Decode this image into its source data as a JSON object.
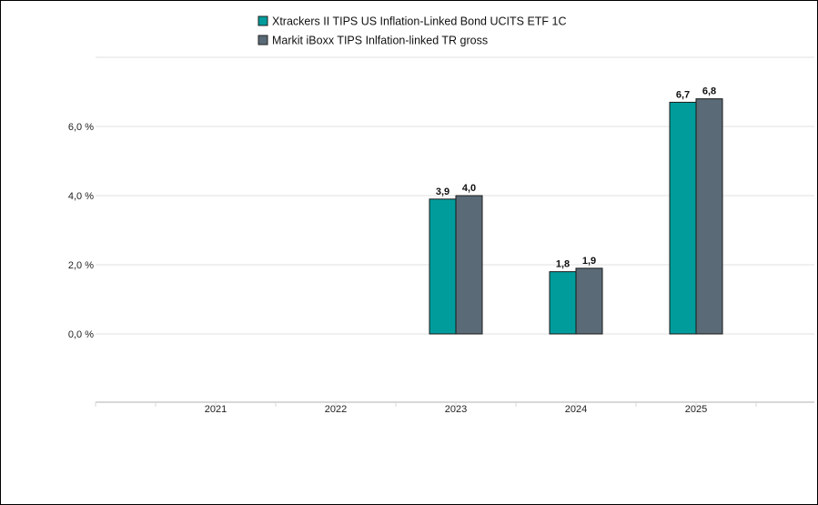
{
  "chart_data": {
    "type": "bar",
    "title": "",
    "xlabel": "",
    "ylabel": "",
    "categories": [
      "2021",
      "2022",
      "2023",
      "2024",
      "2025"
    ],
    "series": [
      {
        "name": "Xtrackers II TIPS US Inflation-Linked Bond UCITS ETF 1C",
        "color": "#009c9c",
        "values": [
          null,
          null,
          3.9,
          1.8,
          6.7
        ],
        "labels": [
          "",
          "",
          "3,9",
          "1,8",
          "6,7"
        ]
      },
      {
        "name": "Markit iBoxx TIPS Inlfation-linked TR gross",
        "color": "#5a6a76",
        "values": [
          null,
          null,
          4.0,
          1.9,
          6.8
        ],
        "labels": [
          "",
          "",
          "4,0",
          "1,9",
          "6,8"
        ]
      }
    ],
    "ylim": [
      -2,
      8
    ],
    "yticks": [
      0,
      2,
      4,
      6
    ],
    "ytick_labels": [
      "0,0 %",
      "2,0 %",
      "4,0 %",
      "6,0 %"
    ],
    "grid": true,
    "legend_position": "top"
  }
}
